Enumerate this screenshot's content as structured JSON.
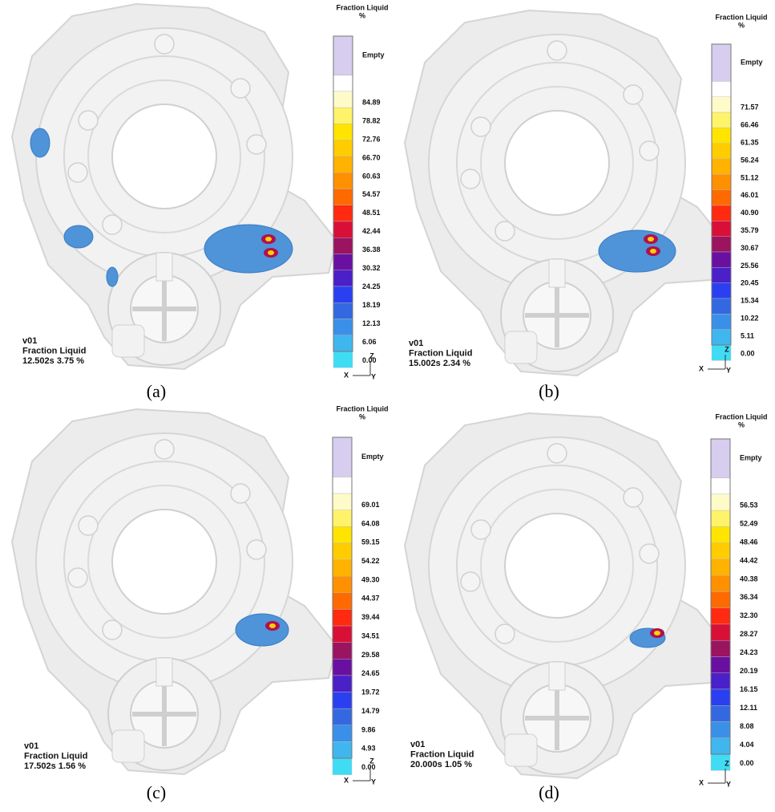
{
  "panels": [
    {
      "caption": "(a)",
      "legend": {
        "title": "Fraction Liquid",
        "unit": "%",
        "labels": [
          "Empty",
          "84.89",
          "78.82",
          "72.76",
          "66.70",
          "60.63",
          "54.57",
          "48.51",
          "42.44",
          "36.38",
          "30.32",
          "24.25",
          "18.19",
          "12.13",
          "6.06",
          "0.00"
        ]
      },
      "info": [
        "v01",
        "Fraction Liquid",
        "12.502s 3.75 %"
      ],
      "axes": {
        "z": "Z",
        "x": "X",
        "y": "Y"
      }
    },
    {
      "caption": "(b)",
      "legend": {
        "title": "Fraction Liquid",
        "unit": "%",
        "labels": [
          "Empty",
          "71.57",
          "66.46",
          "61.35",
          "56.24",
          "51.12",
          "46.01",
          "40.90",
          "35.79",
          "30.67",
          "25.56",
          "20.45",
          "15.34",
          "10.22",
          "5.11",
          "0.00"
        ]
      },
      "info": [
        "v01",
        "Fraction Liquid",
        "15.002s 2.34 %"
      ],
      "axes": {
        "z": "Z",
        "x": "X",
        "y": "Y"
      }
    },
    {
      "caption": "(c)",
      "legend": {
        "title": "Fraction Liquid",
        "unit": "%",
        "labels": [
          "Empty",
          "69.01",
          "64.08",
          "59.15",
          "54.22",
          "49.30",
          "44.37",
          "39.44",
          "34.51",
          "29.58",
          "24.65",
          "19.72",
          "14.79",
          "9.86",
          "4.93",
          "0.00"
        ]
      },
      "info": [
        "v01",
        "Fraction Liquid",
        "17.502s 1.56 %"
      ],
      "axes": {
        "z": "Z",
        "x": "X",
        "y": "Y"
      }
    },
    {
      "caption": "(d)",
      "legend": {
        "title": "Fraction Liquid",
        "unit": "%",
        "labels": [
          "Empty",
          "56.53",
          "52.49",
          "48.46",
          "44.42",
          "40.38",
          "36.34",
          "32.30",
          "28.27",
          "24.23",
          "20.19",
          "16.15",
          "12.11",
          "8.08",
          "4.04",
          "0.00"
        ]
      },
      "info": [
        "v01",
        "Fraction Liquid",
        "20.000s 1.05 %"
      ],
      "axes": {
        "z": "Z",
        "x": "X",
        "y": "Y"
      }
    }
  ]
}
